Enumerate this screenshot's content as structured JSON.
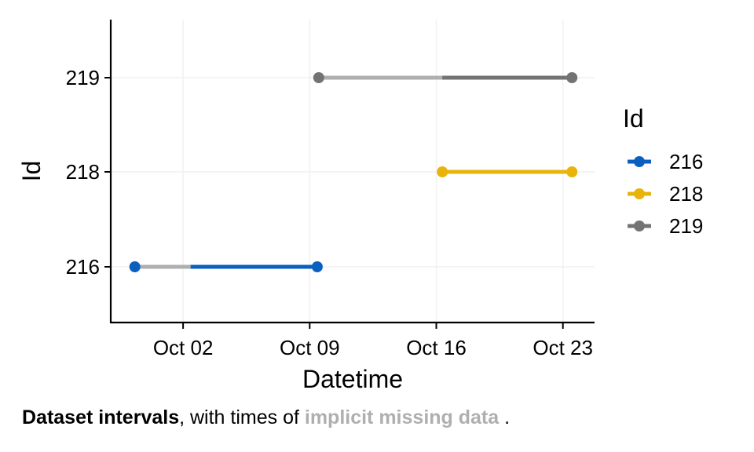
{
  "chart_data": {
    "type": "line",
    "subtype": "interval-segments",
    "xlabel": "Datetime",
    "ylabel": "Id",
    "x_tick_labels": [
      "Oct 02",
      "Oct 09",
      "Oct 16",
      "Oct 23"
    ],
    "x_ticks": [
      "2023-10-02",
      "2023-10-09",
      "2023-10-16",
      "2023-10-23"
    ],
    "xlim": [
      "2023-09-28",
      "2023-10-24T18:00"
    ],
    "categories": [
      "216",
      "218",
      "219"
    ],
    "grid": true,
    "legend": {
      "title": "Id",
      "placement": "right"
    },
    "missing_color": "#AFAFAF",
    "series": [
      {
        "name": "216",
        "color": "#0A5FBF",
        "start": "2023-09-29T08:00",
        "end": "2023-10-09T10:00",
        "missing": [
          [
            "2023-09-29T08:00",
            "2023-10-02T10:00"
          ]
        ]
      },
      {
        "name": "218",
        "color": "#E8B40A",
        "start": "2023-10-16T08:00",
        "end": "2023-10-23T12:00",
        "missing": []
      },
      {
        "name": "219",
        "color": "#737373",
        "start": "2023-10-09T12:00",
        "end": "2023-10-23T12:00",
        "missing": [
          [
            "2023-10-09T12:00",
            "2023-10-16T08:00"
          ]
        ]
      }
    ]
  },
  "caption": {
    "bold_part": "Dataset intervals",
    "middle": ", with times of ",
    "highlight": "implicit missing data",
    "end": " ."
  }
}
